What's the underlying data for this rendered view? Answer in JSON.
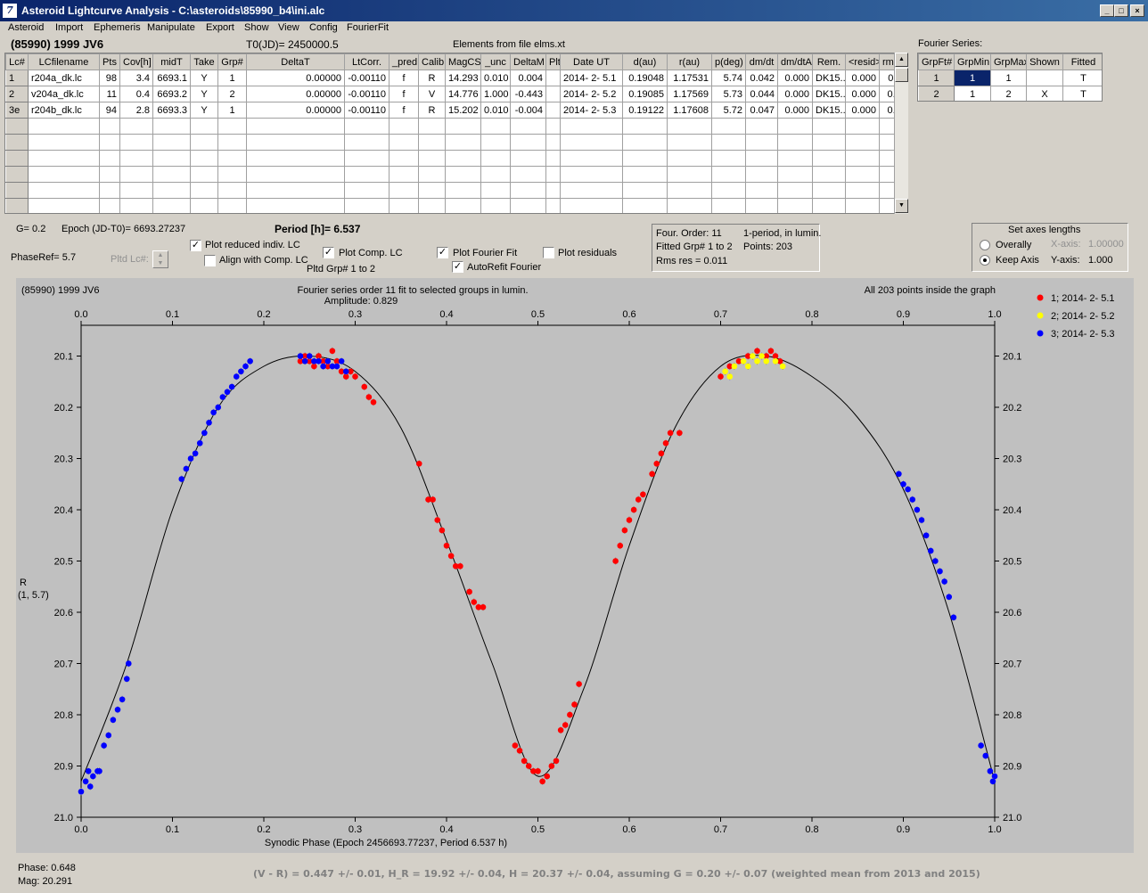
{
  "window": {
    "title": "Asteroid Lightcurve Analysis - C:\\asteroids\\85990_b4\\ini.alc",
    "icon": "app-logo-icon",
    "controls": [
      "_",
      "□",
      "×"
    ]
  },
  "menu": [
    "Asteroid",
    "Import",
    "Ephemeris",
    "Manipulate",
    "Export",
    "Show",
    "View",
    "Config",
    "FourierFit"
  ],
  "header": {
    "asteroid": "(85990) 1999 JV6",
    "t0": "T0(JD)= 2450000.5",
    "elements": "Elements from file elms.xt"
  },
  "lc_table": {
    "columns": [
      "Lc#",
      "LCfilename",
      "Pts",
      "Cov[h]",
      "midT",
      "Take",
      "Grp#",
      "DeltaT",
      "LtCorr.",
      "_pred.",
      "Calib.",
      "MagCS",
      "_unc",
      "DeltaM",
      "Plt",
      "Date UT",
      "d(au)",
      "r(au)",
      "p(deg)",
      "dm/dt",
      "dm/dtA",
      "Rem.",
      "<resid>",
      "rms res"
    ],
    "rows": [
      [
        "1",
        "r204a_dk.lc",
        "98",
        "3.4",
        "6693.1",
        "Y",
        "1",
        "0.00000",
        "-0.00110",
        "f",
        "R",
        "14.293",
        "0.010",
        "0.004",
        "",
        "2014- 2- 5.1",
        "0.19048",
        "1.17531",
        "5.74",
        "0.042",
        "0.000",
        "DK15..",
        "0.000",
        "0.011"
      ],
      [
        "2",
        "v204a_dk.lc",
        "11",
        "0.4",
        "6693.2",
        "Y",
        "2",
        "0.00000",
        "-0.00110",
        "f",
        "V",
        "14.776",
        "1.000",
        "-0.443",
        "",
        "2014- 2- 5.2",
        "0.19085",
        "1.17569",
        "5.73",
        "0.044",
        "0.000",
        "DK15..",
        "0.000",
        "0.007"
      ],
      [
        "3e",
        "r204b_dk.lc",
        "94",
        "2.8",
        "6693.3",
        "Y",
        "1",
        "0.00000",
        "-0.00110",
        "f",
        "R",
        "15.202",
        "0.010",
        "-0.004",
        "",
        "2014- 2- 5.3",
        "0.19122",
        "1.17608",
        "5.72",
        "0.047",
        "0.000",
        "DK15..",
        "0.000",
        "0.010"
      ]
    ]
  },
  "fourier_table": {
    "label": "Fourier Series:",
    "columns": [
      "GrpFt#",
      "GrpMin",
      "GrpMax",
      "Shown",
      "Fitted"
    ],
    "rows": [
      [
        "1",
        "1",
        "1",
        "",
        "T"
      ],
      [
        "2",
        "1",
        "2",
        "X",
        "T"
      ]
    ]
  },
  "controls": {
    "g_value": "G= 0.2",
    "epoch": "Epoch (JD-T0)= 6693.27237",
    "period": "Period [h]= 6.537",
    "phase_ref": "PhaseRef= 5.7",
    "pltd_lc_label": "Pltd Lc#:",
    "plot_reduced": "Plot reduced indiv. LC",
    "align_comp": "Align with Comp. LC",
    "plot_comp": "Plot Comp. LC",
    "pltd_grp": "Pltd Grp#  1   to   2",
    "plot_fourier": "Plot Fourier Fit",
    "autorefit": "AutoRefit Fourier",
    "plot_residuals": "Plot residuals",
    "check_state": "✓"
  },
  "fit_info": {
    "order": "Four. Order: 11",
    "mode": "1-period, in lumin.",
    "fitted": "Fitted Grp# 1 to 2",
    "points": "Points: 203",
    "rms": "Rms res     = 0.011"
  },
  "axes_box": {
    "title": "Set axes lengths",
    "overally": "Overally",
    "keep_axis": "Keep Axis",
    "x_axis_label": "X-axis:",
    "x_axis_value": "1.00000",
    "y_axis_label": "Y-axis:",
    "y_axis_value": "1.000"
  },
  "chart_data": {
    "type": "scatter",
    "title_left": "(85990) 1999 JV6",
    "title_center_1": "Fourier series order 11 fit to selected groups in lumin.",
    "title_center_2": "Amplitude: 0.829",
    "title_right": "All 203 points inside the graph",
    "xlabel": "Synodic Phase (Epoch 2456693.77237, Period 6.537 h)",
    "ylabel_1": "R",
    "ylabel_2": "(1, 5.7)",
    "xlim": [
      0,
      1
    ],
    "ylim": [
      21.0,
      20.04
    ],
    "y_inverted": true,
    "x_ticks": [
      "0.0",
      "0.1",
      "0.2",
      "0.3",
      "0.4",
      "0.5",
      "0.6",
      "0.7",
      "0.8",
      "0.9",
      "1.0"
    ],
    "y_ticks": [
      "20.1",
      "20.2",
      "20.3",
      "20.4",
      "20.5",
      "20.6",
      "20.7",
      "20.8",
      "20.9",
      "21.0"
    ],
    "legend_position": "top-right",
    "series": [
      {
        "name": "1; 2014- 2- 5.1",
        "color": "#ff0000",
        "points": [
          [
            0.24,
            20.11
          ],
          [
            0.245,
            20.1
          ],
          [
            0.25,
            20.11
          ],
          [
            0.255,
            20.12
          ],
          [
            0.26,
            20.1
          ],
          [
            0.265,
            20.11
          ],
          [
            0.27,
            20.12
          ],
          [
            0.275,
            20.09
          ],
          [
            0.28,
            20.11
          ],
          [
            0.285,
            20.13
          ],
          [
            0.29,
            20.14
          ],
          [
            0.295,
            20.13
          ],
          [
            0.3,
            20.14
          ],
          [
            0.31,
            20.16
          ],
          [
            0.315,
            20.18
          ],
          [
            0.32,
            20.19
          ],
          [
            0.37,
            20.31
          ],
          [
            0.38,
            20.38
          ],
          [
            0.385,
            20.38
          ],
          [
            0.39,
            20.42
          ],
          [
            0.395,
            20.44
          ],
          [
            0.4,
            20.47
          ],
          [
            0.405,
            20.49
          ],
          [
            0.41,
            20.51
          ],
          [
            0.415,
            20.51
          ],
          [
            0.425,
            20.56
          ],
          [
            0.43,
            20.58
          ],
          [
            0.435,
            20.59
          ],
          [
            0.44,
            20.59
          ],
          [
            0.475,
            20.86
          ],
          [
            0.48,
            20.87
          ],
          [
            0.485,
            20.89
          ],
          [
            0.49,
            20.9
          ],
          [
            0.495,
            20.91
          ],
          [
            0.5,
            20.91
          ],
          [
            0.505,
            20.93
          ],
          [
            0.51,
            20.92
          ],
          [
            0.515,
            20.9
          ],
          [
            0.52,
            20.89
          ],
          [
            0.525,
            20.83
          ],
          [
            0.53,
            20.82
          ],
          [
            0.535,
            20.8
          ],
          [
            0.54,
            20.78
          ],
          [
            0.545,
            20.74
          ],
          [
            0.585,
            20.5
          ],
          [
            0.59,
            20.47
          ],
          [
            0.595,
            20.44
          ],
          [
            0.6,
            20.42
          ],
          [
            0.605,
            20.4
          ],
          [
            0.61,
            20.38
          ],
          [
            0.615,
            20.37
          ],
          [
            0.625,
            20.33
          ],
          [
            0.63,
            20.31
          ],
          [
            0.635,
            20.29
          ],
          [
            0.64,
            20.27
          ],
          [
            0.645,
            20.25
          ],
          [
            0.655,
            20.25
          ],
          [
            0.7,
            20.14
          ],
          [
            0.71,
            20.12
          ],
          [
            0.72,
            20.11
          ],
          [
            0.73,
            20.1
          ],
          [
            0.74,
            20.09
          ],
          [
            0.75,
            20.1
          ],
          [
            0.755,
            20.09
          ],
          [
            0.76,
            20.1
          ],
          [
            0.765,
            20.11
          ]
        ]
      },
      {
        "name": "2; 2014- 2- 5.2",
        "color": "#ffff00",
        "points": [
          [
            0.705,
            20.13
          ],
          [
            0.715,
            20.12
          ],
          [
            0.725,
            20.11
          ],
          [
            0.735,
            20.1
          ],
          [
            0.745,
            20.1
          ],
          [
            0.75,
            20.11
          ],
          [
            0.76,
            20.11
          ],
          [
            0.768,
            20.12
          ],
          [
            0.71,
            20.14
          ],
          [
            0.73,
            20.12
          ],
          [
            0.74,
            20.11
          ]
        ]
      },
      {
        "name": "3; 2014- 2- 5.3",
        "color": "#0000ff",
        "points": [
          [
            0.0,
            20.95
          ],
          [
            0.005,
            20.93
          ],
          [
            0.008,
            20.91
          ],
          [
            0.01,
            20.94
          ],
          [
            0.013,
            20.92
          ],
          [
            0.018,
            20.91
          ],
          [
            0.02,
            20.91
          ],
          [
            0.025,
            20.86
          ],
          [
            0.03,
            20.84
          ],
          [
            0.035,
            20.81
          ],
          [
            0.04,
            20.79
          ],
          [
            0.045,
            20.77
          ],
          [
            0.05,
            20.73
          ],
          [
            0.052,
            20.7
          ],
          [
            0.11,
            20.34
          ],
          [
            0.115,
            20.32
          ],
          [
            0.12,
            20.3
          ],
          [
            0.125,
            20.29
          ],
          [
            0.13,
            20.27
          ],
          [
            0.135,
            20.25
          ],
          [
            0.14,
            20.23
          ],
          [
            0.145,
            20.21
          ],
          [
            0.15,
            20.2
          ],
          [
            0.155,
            20.18
          ],
          [
            0.16,
            20.17
          ],
          [
            0.165,
            20.16
          ],
          [
            0.17,
            20.14
          ],
          [
            0.175,
            20.13
          ],
          [
            0.18,
            20.12
          ],
          [
            0.185,
            20.11
          ],
          [
            0.24,
            20.1
          ],
          [
            0.245,
            20.11
          ],
          [
            0.25,
            20.1
          ],
          [
            0.255,
            20.11
          ],
          [
            0.26,
            20.11
          ],
          [
            0.265,
            20.12
          ],
          [
            0.27,
            20.11
          ],
          [
            0.275,
            20.12
          ],
          [
            0.28,
            20.12
          ],
          [
            0.285,
            20.11
          ],
          [
            0.29,
            20.13
          ],
          [
            0.895,
            20.33
          ],
          [
            0.9,
            20.35
          ],
          [
            0.905,
            20.36
          ],
          [
            0.91,
            20.38
          ],
          [
            0.915,
            20.4
          ],
          [
            0.92,
            20.42
          ],
          [
            0.925,
            20.45
          ],
          [
            0.93,
            20.48
          ],
          [
            0.935,
            20.5
          ],
          [
            0.94,
            20.52
          ],
          [
            0.945,
            20.54
          ],
          [
            0.95,
            20.57
          ],
          [
            0.955,
            20.61
          ],
          [
            0.985,
            20.86
          ],
          [
            0.99,
            20.88
          ],
          [
            0.995,
            20.91
          ],
          [
            1.0,
            20.92
          ],
          [
            0.998,
            20.93
          ]
        ]
      }
    ],
    "fit_curve": {
      "name": "Fourier fit",
      "color": "#000000",
      "x": [
        0.0,
        0.05,
        0.1,
        0.15,
        0.2,
        0.25,
        0.3,
        0.35,
        0.4,
        0.45,
        0.5,
        0.55,
        0.6,
        0.65,
        0.7,
        0.75,
        0.8,
        0.85,
        0.9,
        0.95,
        1.0
      ],
      "y": [
        20.93,
        20.7,
        20.4,
        20.2,
        20.12,
        20.1,
        20.13,
        20.24,
        20.46,
        20.7,
        20.92,
        20.75,
        20.47,
        20.24,
        20.12,
        20.1,
        20.14,
        20.22,
        20.36,
        20.6,
        20.93
      ]
    }
  },
  "status": {
    "phase": "Phase:  0.648",
    "mag": "Mag:   20.291",
    "summary": "(V - R) = 0.447 +/- 0.01, H_R = 19.92 +/- 0.04, H = 20.37 +/- 0.04, assuming G = 0.20 +/- 0.07 (weighted mean from 2013 and 2015)"
  }
}
